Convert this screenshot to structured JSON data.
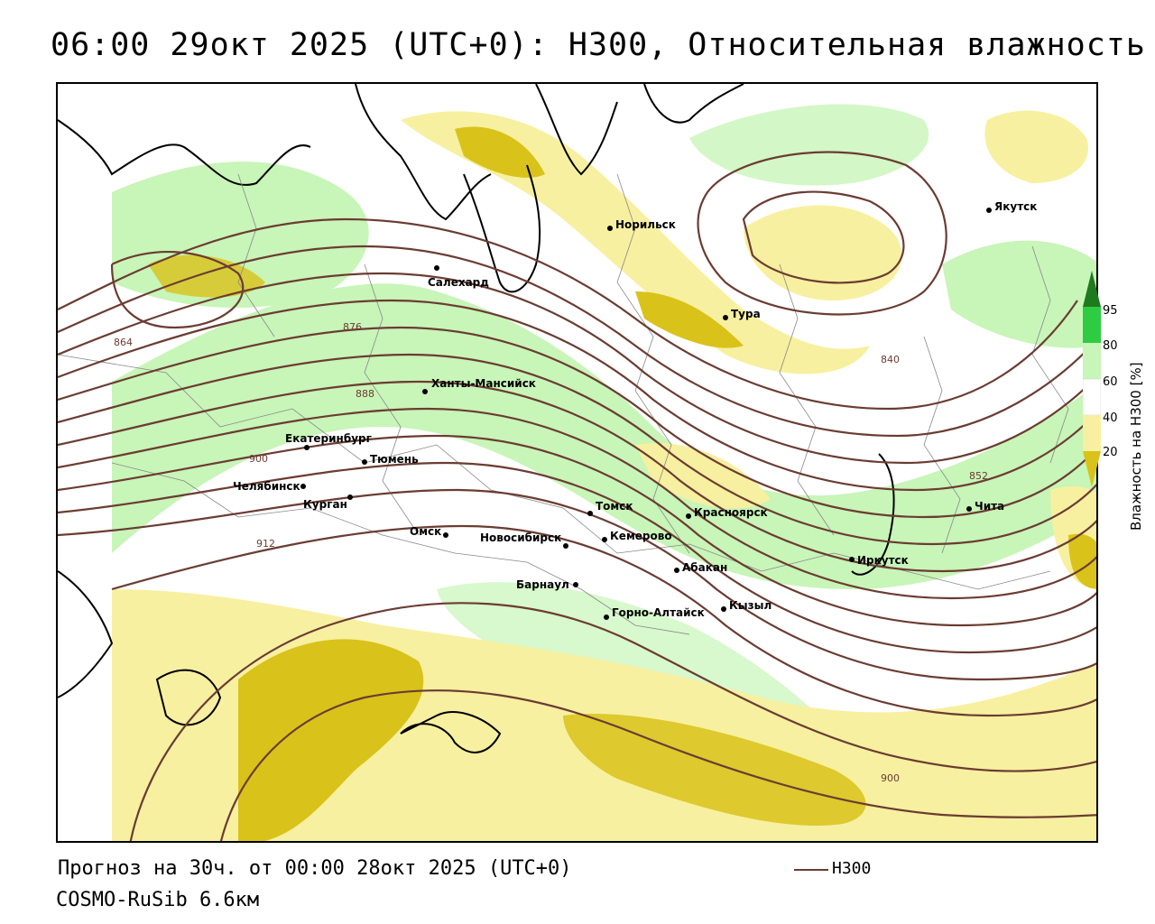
{
  "title": "06:00 29окт 2025 (UTC+0): H300, Относительная влажность",
  "footer": {
    "forecast": "Прогноз на 30ч. от 00:00 28окт 2025 (UTC+0)",
    "model": "COSMO-RuSib 6.6км"
  },
  "legend": {
    "line_label": "H300",
    "line_color": "#6b3c32"
  },
  "colorbar": {
    "title": "Влажность на H300 [%]",
    "ticks": [
      "95",
      "80",
      "60",
      "40",
      "20"
    ],
    "colors": {
      "c95": "#1e7a1e",
      "c80": "#2ecc40",
      "c60": "#c8f5b8",
      "c40": "#ffffff",
      "c20": "#f7f0a0",
      "c0": "#d9c21a"
    }
  },
  "cities": [
    {
      "name": "Якутск"
    },
    {
      "name": "Норильск"
    },
    {
      "name": "Салехард"
    },
    {
      "name": "Тура"
    },
    {
      "name": "Ханты-Мансийск"
    },
    {
      "name": "Екатеринбург"
    },
    {
      "name": "Тюмень"
    },
    {
      "name": "Челябинск"
    },
    {
      "name": "Курган"
    },
    {
      "name": "Омск"
    },
    {
      "name": "Новосибирск"
    },
    {
      "name": "Томск"
    },
    {
      "name": "Кемерово"
    },
    {
      "name": "Красноярск"
    },
    {
      "name": "Барнаул"
    },
    {
      "name": "Абакан"
    },
    {
      "name": "Горно-Алтайск"
    },
    {
      "name": "Кызыл"
    },
    {
      "name": "Иркутск"
    },
    {
      "name": "Чита"
    }
  ],
  "contour_labels": [
    "864",
    "876",
    "888",
    "900",
    "912",
    "840",
    "852",
    "900"
  ]
}
